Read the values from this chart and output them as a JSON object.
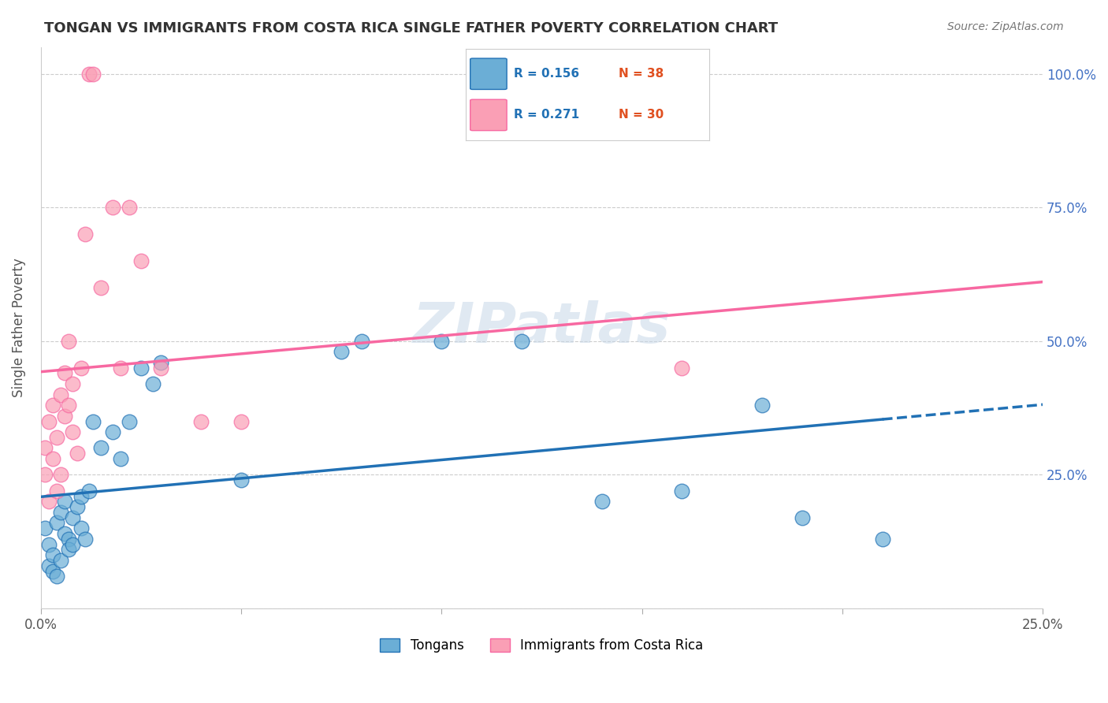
{
  "title": "TONGAN VS IMMIGRANTS FROM COSTA RICA SINGLE FATHER POVERTY CORRELATION CHART",
  "source": "Source: ZipAtlas.com",
  "ylabel": "Single Father Poverty",
  "legend_label1": "Tongans",
  "legend_label2": "Immigrants from Costa Rica",
  "color_blue": "#6baed6",
  "color_pink": "#fa9fb5",
  "color_blue_line": "#2171b5",
  "color_pink_line": "#f768a1",
  "color_right_axis": "#4472c4",
  "color_red_text": "#e05020",
  "watermark": "ZIPatlas",
  "background_color": "#ffffff",
  "xlim": [
    0.0,
    0.25
  ],
  "ylim": [
    0.0,
    1.05
  ],
  "tongan_x": [
    0.001,
    0.002,
    0.002,
    0.003,
    0.003,
    0.004,
    0.004,
    0.005,
    0.005,
    0.006,
    0.006,
    0.007,
    0.007,
    0.008,
    0.008,
    0.009,
    0.01,
    0.01,
    0.011,
    0.012,
    0.013,
    0.015,
    0.018,
    0.02,
    0.022,
    0.025,
    0.028,
    0.03,
    0.05,
    0.075,
    0.08,
    0.1,
    0.12,
    0.14,
    0.16,
    0.18,
    0.19,
    0.21
  ],
  "tongan_y": [
    0.15,
    0.12,
    0.08,
    0.1,
    0.07,
    0.16,
    0.06,
    0.18,
    0.09,
    0.2,
    0.14,
    0.13,
    0.11,
    0.17,
    0.12,
    0.19,
    0.21,
    0.15,
    0.13,
    0.22,
    0.35,
    0.3,
    0.33,
    0.28,
    0.35,
    0.45,
    0.42,
    0.46,
    0.24,
    0.48,
    0.5,
    0.5,
    0.5,
    0.2,
    0.22,
    0.38,
    0.17,
    0.13
  ],
  "cr_x": [
    0.001,
    0.001,
    0.002,
    0.002,
    0.003,
    0.003,
    0.004,
    0.004,
    0.005,
    0.005,
    0.006,
    0.006,
    0.007,
    0.007,
    0.008,
    0.008,
    0.009,
    0.01,
    0.011,
    0.012,
    0.013,
    0.015,
    0.02,
    0.025,
    0.04,
    0.05,
    0.03,
    0.022,
    0.018,
    0.16
  ],
  "cr_y": [
    0.3,
    0.25,
    0.35,
    0.2,
    0.28,
    0.38,
    0.32,
    0.22,
    0.4,
    0.25,
    0.44,
    0.36,
    0.38,
    0.5,
    0.42,
    0.33,
    0.29,
    0.45,
    0.7,
    1.0,
    1.0,
    0.6,
    0.45,
    0.65,
    0.35,
    0.35,
    0.45,
    0.75,
    0.75,
    0.45
  ]
}
